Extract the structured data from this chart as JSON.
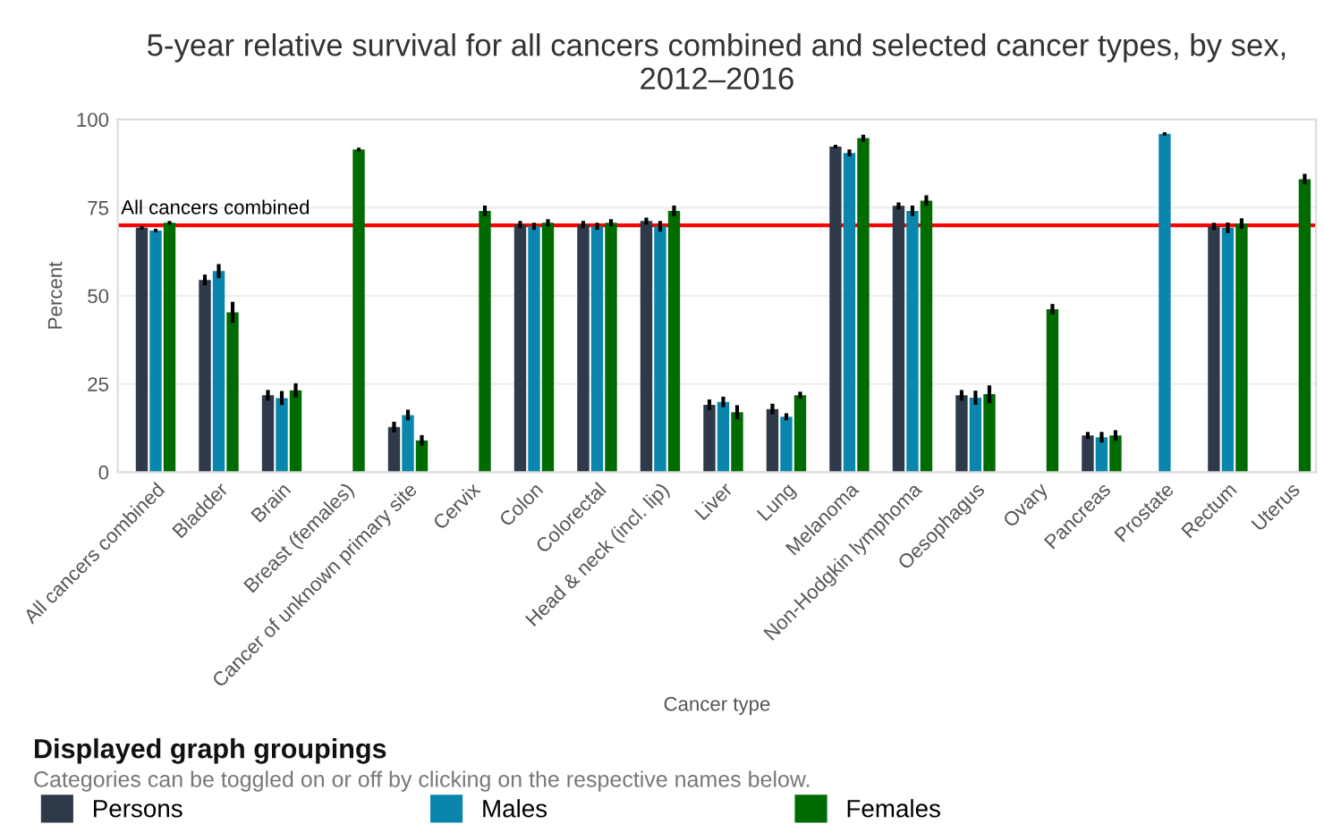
{
  "chart_data": {
    "type": "bar",
    "title": "5-year relative survival for all cancers combined and selected cancer types, by sex, 2012–2016",
    "xlabel": "Cancer type",
    "ylabel": "Percent",
    "legend_title": "Displayed graph groupings",
    "annotations": [
      "Categories can be toggled on or off by clicking on the respective names below."
    ],
    "categories": [
      "All cancers combined",
      "Bladder",
      "Brain",
      "Breast (females)",
      "Cancer of unknown primary site",
      "Cervix",
      "Colon",
      "Colorectal",
      "Head & neck (incl. lip)",
      "Liver",
      "Lung",
      "Melanoma",
      "Non-Hodgkin lymphoma",
      "Oesophagus",
      "Ovary",
      "Pancreas",
      "Prostate",
      "Rectum",
      "Uterus"
    ],
    "series": [
      {
        "name": "Persons",
        "color": "#2e3a4a",
        "values": [
          69.3,
          54.5,
          21.8,
          null,
          12.8,
          null,
          70.2,
          70.2,
          71.2,
          19.1,
          17.9,
          92.3,
          75.5,
          21.8,
          null,
          10.4,
          null,
          69.7,
          null
        ],
        "errors": [
          0.5,
          1.5,
          1.5,
          null,
          1.5,
          null,
          1,
          1,
          1,
          1.5,
          1.5,
          0.5,
          1,
          1.5,
          null,
          1,
          null,
          1,
          null
        ]
      },
      {
        "name": "Males",
        "color": "#0a86ad",
        "values": [
          68.5,
          57,
          21,
          null,
          16.2,
          null,
          69.7,
          69.7,
          69.7,
          19.9,
          15.7,
          90.5,
          74.1,
          21.1,
          null,
          9.9,
          95.9,
          69.3,
          null
        ],
        "errors": [
          0.5,
          2,
          2,
          null,
          1.5,
          null,
          1,
          1,
          1.5,
          1.5,
          1,
          1,
          1.5,
          2,
          null,
          1.5,
          0.5,
          1.5,
          null
        ]
      },
      {
        "name": "Females",
        "color": "#006b00",
        "values": [
          70.7,
          45.3,
          23.2,
          91.5,
          9,
          74.1,
          70.7,
          70.7,
          74.1,
          17,
          21.8,
          94.7,
          77,
          22.1,
          46.2,
          10.4,
          null,
          70.5,
          83.1
        ],
        "errors": [
          0.5,
          3,
          2,
          0.5,
          1.5,
          1.5,
          1,
          1,
          1.5,
          2,
          1,
          1,
          1.5,
          2.5,
          1.5,
          1.5,
          null,
          1.5,
          1.5
        ]
      }
    ],
    "ylim": [
      0,
      100
    ],
    "yticks": [
      0,
      25,
      50,
      75,
      100
    ],
    "grid": "y",
    "legend": "bottom",
    "ref_lines": [
      {
        "axis": "y",
        "value": 70,
        "label": "All cancers combined",
        "color": "#ff0000"
      }
    ]
  }
}
